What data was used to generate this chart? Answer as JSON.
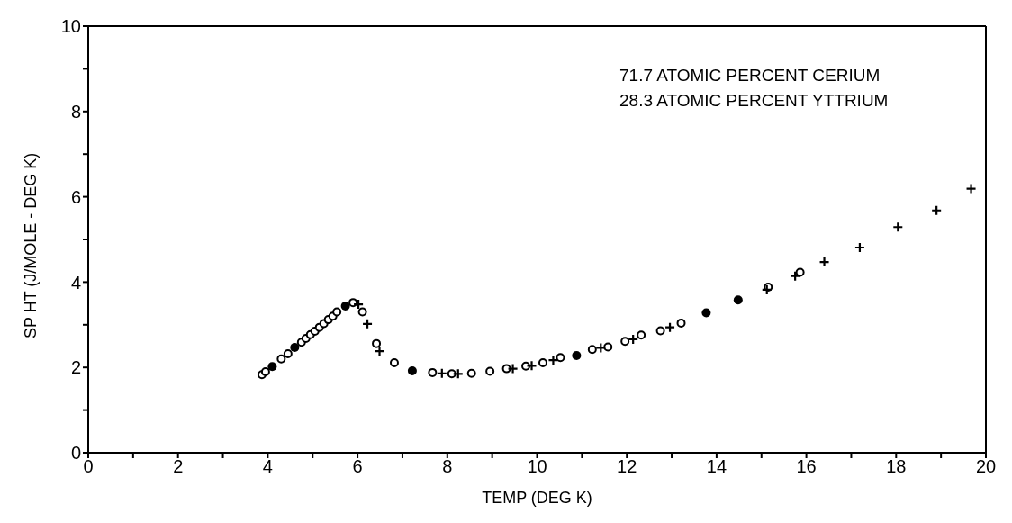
{
  "chart_data": {
    "type": "scatter",
    "xlabel": "TEMP (DEG K)",
    "ylabel": "SP HT (J/MOLE - DEG K)",
    "annotations": [
      "71.7 ATOMIC PERCENT CERIUM",
      "28.3 ATOMIC PERCENT YTTRIUM"
    ],
    "xlim": [
      0,
      20
    ],
    "ylim": [
      0,
      10
    ],
    "xticks": [
      0,
      {
        "value": 1,
        "label": null
      },
      2,
      {
        "value": 3,
        "label": null
      },
      4,
      {
        "value": 5,
        "label": null
      },
      6,
      {
        "value": 7,
        "label": null
      },
      8,
      {
        "value": 9,
        "label": null
      },
      10,
      {
        "value": 11,
        "label": null
      },
      12,
      {
        "value": 13,
        "label": null
      },
      14,
      {
        "value": 15,
        "label": null
      },
      16,
      {
        "value": 17,
        "label": null
      },
      18,
      {
        "value": 19,
        "label": null
      },
      20
    ],
    "yticks": [
      0,
      {
        "value": 1,
        "label": null
      },
      2,
      {
        "value": 3,
        "label": null
      },
      4,
      {
        "value": 5,
        "label": null
      },
      6,
      {
        "value": 7,
        "label": null
      },
      8,
      {
        "value": 9,
        "label": null
      },
      10
    ],
    "series": [
      {
        "color": "#000000",
        "marker": "circle",
        "x": [
          3.87,
          3.95,
          4.3,
          4.45,
          4.75,
          4.85,
          4.95,
          5.05,
          5.15,
          5.25,
          5.35,
          5.45,
          5.54,
          5.9,
          6.11,
          6.42,
          6.82,
          7.67,
          8.1,
          8.54,
          8.95,
          9.32,
          9.75,
          10.13,
          10.52,
          11.23,
          11.58,
          11.96,
          12.32,
          12.75,
          13.21,
          15.15,
          15.86
        ],
        "values": [
          1.83,
          1.9,
          2.2,
          2.32,
          2.59,
          2.68,
          2.77,
          2.85,
          2.94,
          3.03,
          3.12,
          3.2,
          3.3,
          3.52,
          3.3,
          2.56,
          2.11,
          1.88,
          1.85,
          1.86,
          1.91,
          1.97,
          2.03,
          2.11,
          2.23,
          2.42,
          2.48,
          2.61,
          2.76,
          2.86,
          3.04,
          3.88,
          4.23
        ]
      },
      {
        "color": "#000000",
        "marker": "cross",
        "x": [
          6.02,
          6.22,
          6.49,
          7.88,
          8.24,
          9.46,
          9.88,
          10.36,
          11.42,
          12.14,
          12.96,
          15.12,
          15.75,
          16.4,
          17.19,
          18.04,
          18.9,
          19.67
        ],
        "values": [
          3.48,
          3.02,
          2.38,
          1.86,
          1.85,
          1.97,
          2.04,
          2.17,
          2.46,
          2.66,
          2.94,
          3.82,
          4.14,
          4.47,
          4.81,
          5.29,
          5.68,
          6.19
        ]
      },
      {
        "color": "#000000",
        "marker": "dot",
        "x": [
          4.1,
          4.6,
          5.73,
          7.22,
          10.88,
          13.77,
          14.48
        ],
        "values": [
          2.02,
          2.47,
          3.44,
          1.92,
          2.28,
          3.28,
          3.58
        ]
      }
    ]
  }
}
